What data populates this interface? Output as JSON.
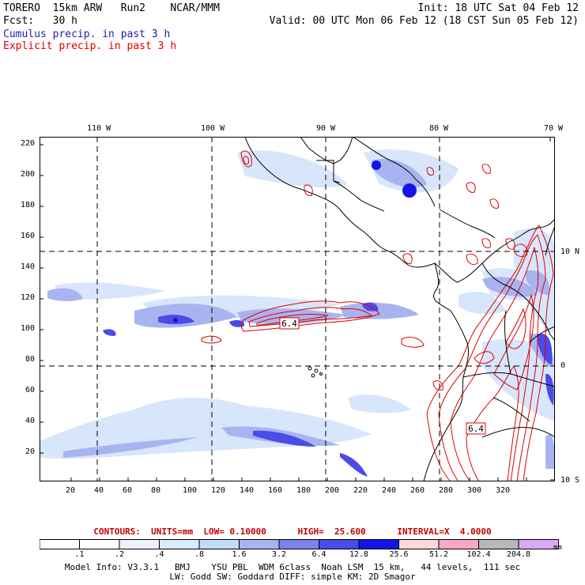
{
  "header": {
    "line1_left": "TORERO  15km ARW   Run2    NCAR/MMM",
    "line1_right": "Init: 18 UTC Sat 04 Feb 12",
    "line2_left": "Fcst:   30 h",
    "line2_right": "Valid: 00 UTC Mon 06 Feb 12 (18 CST Sun 05 Feb 12)",
    "line3": "Cumulus precip. in past 3 h",
    "line4": "Explicit precip. in past 3 h"
  },
  "map": {
    "lon_labels": [
      "110 W",
      "100 W",
      "90 W",
      "80 W",
      "70 W"
    ],
    "lat_labels": [
      "10 N",
      "0",
      "10 S"
    ],
    "y_ticks": [
      "220",
      "200",
      "180",
      "160",
      "140",
      "120",
      "100",
      "80",
      "60",
      "40",
      "20"
    ],
    "x_ticks": [
      "20",
      "40",
      "60",
      "80",
      "100",
      "120",
      "140",
      "160",
      "180",
      "200",
      "220",
      "240",
      "260",
      "280",
      "300",
      "320"
    ],
    "contour_labels": [
      "6.4",
      "6.4"
    ],
    "colors": {
      "cumulus": "#3a3ae0",
      "explicit": "#e00000",
      "land": "#000000"
    }
  },
  "contours_line": "CONTOURS:  UNITS=mm  LOW= 0.10000      HIGH=  25.600      INTERVAL=X  4.0000",
  "colorbar": {
    "labels": [
      ".1",
      ".2",
      ".4",
      ".8",
      "1.6",
      "3.2",
      "6.4",
      "12.8",
      "25.6",
      "51.2",
      "102.4",
      "204.8"
    ],
    "unit": "mm",
    "colors": [
      "#ffffff",
      "#ffffff",
      "#eef2ff",
      "#d8ecff",
      "#c4dcf8",
      "#a8b4f0",
      "#7c84ec",
      "#4b4be8",
      "#1414e6",
      "#fcd8d8",
      "#f8a8c8",
      "#b8b8b8",
      "#dca8f8"
    ]
  },
  "footer": {
    "line1": "Model Info: V3.3.1   BMJ    YSU PBL  WDM 6class  Noah LSM  15 km,   44 levels,  111 sec",
    "line2": "LW: Godd SW: Goddard DIFF: simple KM: 2D Smagor"
  }
}
